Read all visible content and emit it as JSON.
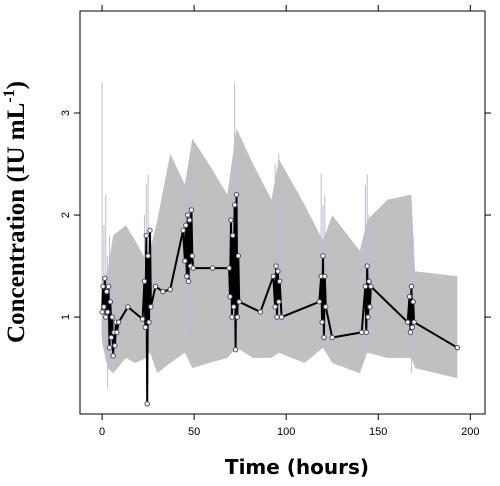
{
  "chart_data": {
    "type": "line",
    "title": "",
    "xlabel": "Time (hours)",
    "ylabel": "Concentration (IU  mL",
    "ylabel_superscript": "-1",
    "ylabel_suffix": ")",
    "xlim": [
      -12,
      208
    ],
    "ylim": [
      0.05,
      4.0
    ],
    "x_ticks": [
      0,
      50,
      100,
      150,
      200
    ],
    "y_ticks": [
      1,
      2,
      3
    ],
    "grid": false,
    "legend": "none",
    "colors": {
      "band": "#c0c0c0",
      "spikes": "#bcbcd2",
      "line": "#000000",
      "point": "#4a4a6a"
    },
    "band": {
      "upper": [
        [
          0,
          1.35
        ],
        [
          3,
          1.45
        ],
        [
          6,
          1.8
        ],
        [
          13,
          1.9
        ],
        [
          18,
          1.75
        ],
        [
          24,
          1.55
        ],
        [
          26,
          1.65
        ],
        [
          30,
          1.95
        ],
        [
          37,
          2.6
        ],
        [
          45,
          2.3
        ],
        [
          49,
          2.75
        ],
        [
          58,
          2.5
        ],
        [
          68,
          2.2
        ],
        [
          73,
          2.85
        ],
        [
          82,
          2.5
        ],
        [
          92,
          2.15
        ],
        [
          96,
          2.55
        ],
        [
          110,
          2.1
        ],
        [
          120,
          1.75
        ],
        [
          125,
          2.0
        ],
        [
          140,
          1.65
        ],
        [
          144,
          1.95
        ],
        [
          155,
          2.15
        ],
        [
          168,
          2.2
        ],
        [
          170,
          1.45
        ],
        [
          193,
          1.4
        ]
      ],
      "lower": [
        [
          193,
          0.4
        ],
        [
          170,
          0.5
        ],
        [
          168,
          0.6
        ],
        [
          155,
          0.6
        ],
        [
          144,
          0.65
        ],
        [
          140,
          0.45
        ],
        [
          125,
          0.55
        ],
        [
          120,
          0.7
        ],
        [
          110,
          0.55
        ],
        [
          96,
          0.65
        ],
        [
          92,
          0.6
        ],
        [
          82,
          0.6
        ],
        [
          73,
          0.7
        ],
        [
          68,
          0.6
        ],
        [
          58,
          0.55
        ],
        [
          49,
          0.5
        ],
        [
          45,
          0.65
        ],
        [
          37,
          0.55
        ],
        [
          30,
          0.45
        ],
        [
          26,
          0.65
        ],
        [
          24,
          0.6
        ],
        [
          18,
          0.55
        ],
        [
          13,
          0.6
        ],
        [
          6,
          0.45
        ],
        [
          3,
          0.5
        ],
        [
          0,
          0.75
        ]
      ]
    },
    "spikes": [
      [
        0,
        0.8,
        3.3
      ],
      [
        1,
        0.9,
        1.9
      ],
      [
        2,
        0.8,
        2.2
      ],
      [
        3,
        0.3,
        1.6
      ],
      [
        4,
        0.5,
        1.8
      ],
      [
        5,
        0.6,
        1.4
      ],
      [
        7,
        0.65,
        1.3
      ],
      [
        23,
        0.85,
        2.0
      ],
      [
        24,
        0.6,
        2.3
      ],
      [
        25,
        0.7,
        2.4
      ],
      [
        26,
        0.9,
        1.8
      ],
      [
        45,
        0.9,
        2.1
      ],
      [
        47,
        0.7,
        2.2
      ],
      [
        48,
        0.8,
        2.5
      ],
      [
        49,
        1.0,
        2.3
      ],
      [
        70,
        0.9,
        2.3
      ],
      [
        71,
        0.8,
        2.5
      ],
      [
        72,
        0.7,
        3.3
      ],
      [
        73,
        0.8,
        2.6
      ],
      [
        74,
        0.9,
        2.4
      ],
      [
        94,
        0.8,
        2.5
      ],
      [
        95,
        0.9,
        2.2
      ],
      [
        96,
        0.85,
        2.6
      ],
      [
        119,
        0.7,
        2.4
      ],
      [
        120,
        0.9,
        2.1
      ],
      [
        121,
        0.75,
        2.2
      ],
      [
        143,
        0.8,
        2.3
      ],
      [
        144,
        0.65,
        2.4
      ],
      [
        145,
        0.85,
        2.0
      ],
      [
        167,
        0.6,
        2.0
      ],
      [
        168,
        0.45,
        2.1
      ],
      [
        169,
        0.7,
        1.8
      ]
    ],
    "series": [
      {
        "values": [
          [
            0,
            1.05
          ],
          [
            0.5,
            1.3
          ],
          [
            1,
            1.1
          ],
          [
            1.5,
            1.38
          ],
          [
            2,
            1.0
          ],
          [
            2.5,
            1.25
          ],
          [
            3,
            1.05
          ],
          [
            3.5,
            1.3
          ],
          [
            4,
            0.7
          ],
          [
            4.5,
            1.15
          ],
          [
            5,
            0.8
          ],
          [
            5.5,
            1.0
          ],
          [
            6,
            0.62
          ],
          [
            6.5,
            0.85
          ],
          [
            7,
            0.72
          ],
          [
            7.5,
            0.95
          ],
          [
            8,
            0.85
          ],
          [
            9,
            0.95
          ],
          [
            14,
            1.1
          ],
          [
            22,
            0.98
          ],
          [
            23,
            1.35
          ],
          [
            23.5,
            0.9
          ],
          [
            24,
            1.8
          ],
          [
            24.5,
            0.15
          ],
          [
            25,
            1.6
          ],
          [
            25.5,
            0.95
          ],
          [
            26,
            1.85
          ],
          [
            26.5,
            1.1
          ],
          [
            29,
            1.3
          ],
          [
            33,
            1.25
          ],
          [
            37,
            1.27
          ],
          [
            44,
            1.85
          ],
          [
            45,
            1.55
          ],
          [
            45.5,
            1.9
          ],
          [
            46,
            1.4
          ],
          [
            46.5,
            2.0
          ],
          [
            47,
            1.35
          ],
          [
            47.5,
            1.95
          ],
          [
            48,
            1.5
          ],
          [
            48.5,
            2.05
          ],
          [
            49,
            1.6
          ],
          [
            49.5,
            1.48
          ],
          [
            60,
            1.48
          ],
          [
            69,
            1.48
          ],
          [
            69.5,
            1.2
          ],
          [
            70,
            1.95
          ],
          [
            70.5,
            1.0
          ],
          [
            71,
            1.8
          ],
          [
            71.5,
            1.1
          ],
          [
            72,
            2.1
          ],
          [
            72.5,
            0.68
          ],
          [
            73,
            2.2
          ],
          [
            73.5,
            1.0
          ],
          [
            74,
            1.6
          ],
          [
            74.5,
            1.15
          ],
          [
            86,
            1.05
          ],
          [
            93,
            1.4
          ],
          [
            94,
            1.1
          ],
          [
            94.5,
            1.5
          ],
          [
            95,
            1.0
          ],
          [
            95.5,
            1.45
          ],
          [
            96,
            1.15
          ],
          [
            96.5,
            1.35
          ],
          [
            97.5,
            1.0
          ],
          [
            118,
            1.15
          ],
          [
            119,
            1.4
          ],
          [
            119.5,
            0.95
          ],
          [
            120,
            1.6
          ],
          [
            120.5,
            0.8
          ],
          [
            121,
            1.4
          ],
          [
            121.5,
            1.1
          ],
          [
            125,
            0.8
          ],
          [
            141,
            0.85
          ],
          [
            143,
            1.3
          ],
          [
            143.5,
            0.85
          ],
          [
            144,
            1.5
          ],
          [
            144.5,
            1.0
          ],
          [
            145,
            1.35
          ],
          [
            145.5,
            1.1
          ],
          [
            146,
            1.3
          ],
          [
            166,
            0.95
          ],
          [
            167,
            1.2
          ],
          [
            167.5,
            0.85
          ],
          [
            168,
            1.3
          ],
          [
            168.5,
            0.9
          ],
          [
            169,
            1.15
          ],
          [
            169.5,
            0.95
          ],
          [
            193,
            0.7
          ]
        ]
      }
    ]
  }
}
